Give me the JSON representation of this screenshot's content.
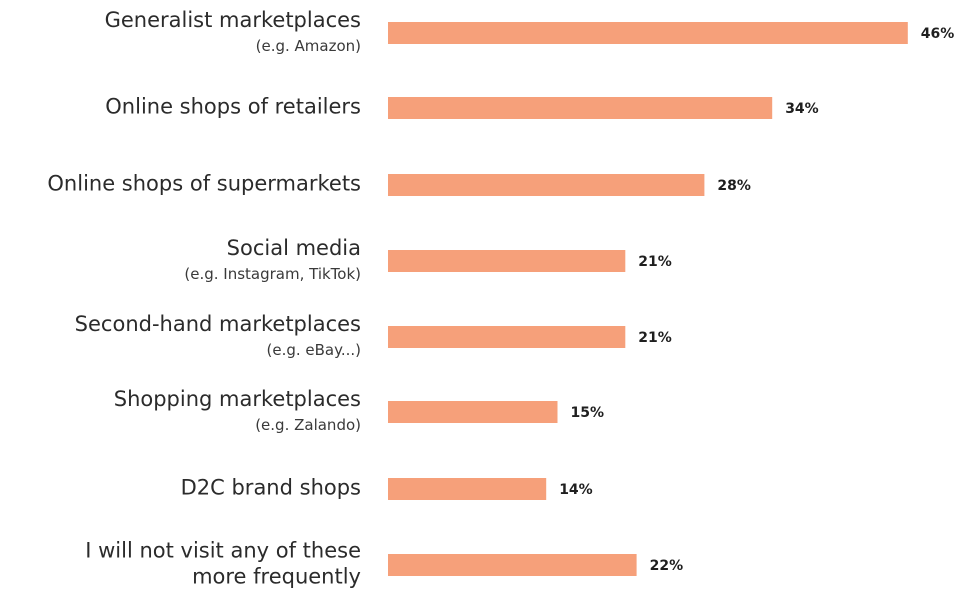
{
  "chart_data": {
    "type": "bar",
    "orientation": "horizontal",
    "title": "",
    "xlabel": "",
    "ylabel": "",
    "grid": false,
    "xlim": [
      0,
      50
    ],
    "bar_color": "#F6A07A",
    "value_suffix": "%",
    "categories": [
      {
        "label_lines": [
          "Generalist marketplaces"
        ],
        "sub_lines": [
          "(e.g. Amazon)"
        ]
      },
      {
        "label_lines": [
          "Online shops of retailers"
        ],
        "sub_lines": []
      },
      {
        "label_lines": [
          "Online shops of supermarkets"
        ],
        "sub_lines": []
      },
      {
        "label_lines": [
          "Social media"
        ],
        "sub_lines": [
          "(e.g. Instagram, TikTok)"
        ]
      },
      {
        "label_lines": [
          "Second-hand marketplaces"
        ],
        "sub_lines": [
          "(e.g. eBay...)"
        ]
      },
      {
        "label_lines": [
          "Shopping marketplaces"
        ],
        "sub_lines": [
          "(e.g. Zalando)"
        ]
      },
      {
        "label_lines": [
          "D2C brand shops"
        ],
        "sub_lines": []
      },
      {
        "label_lines": [
          "I will not visit any of these",
          "more frequently"
        ],
        "sub_lines": []
      }
    ],
    "values": [
      46,
      34,
      28,
      21,
      21,
      15,
      14,
      22
    ]
  }
}
